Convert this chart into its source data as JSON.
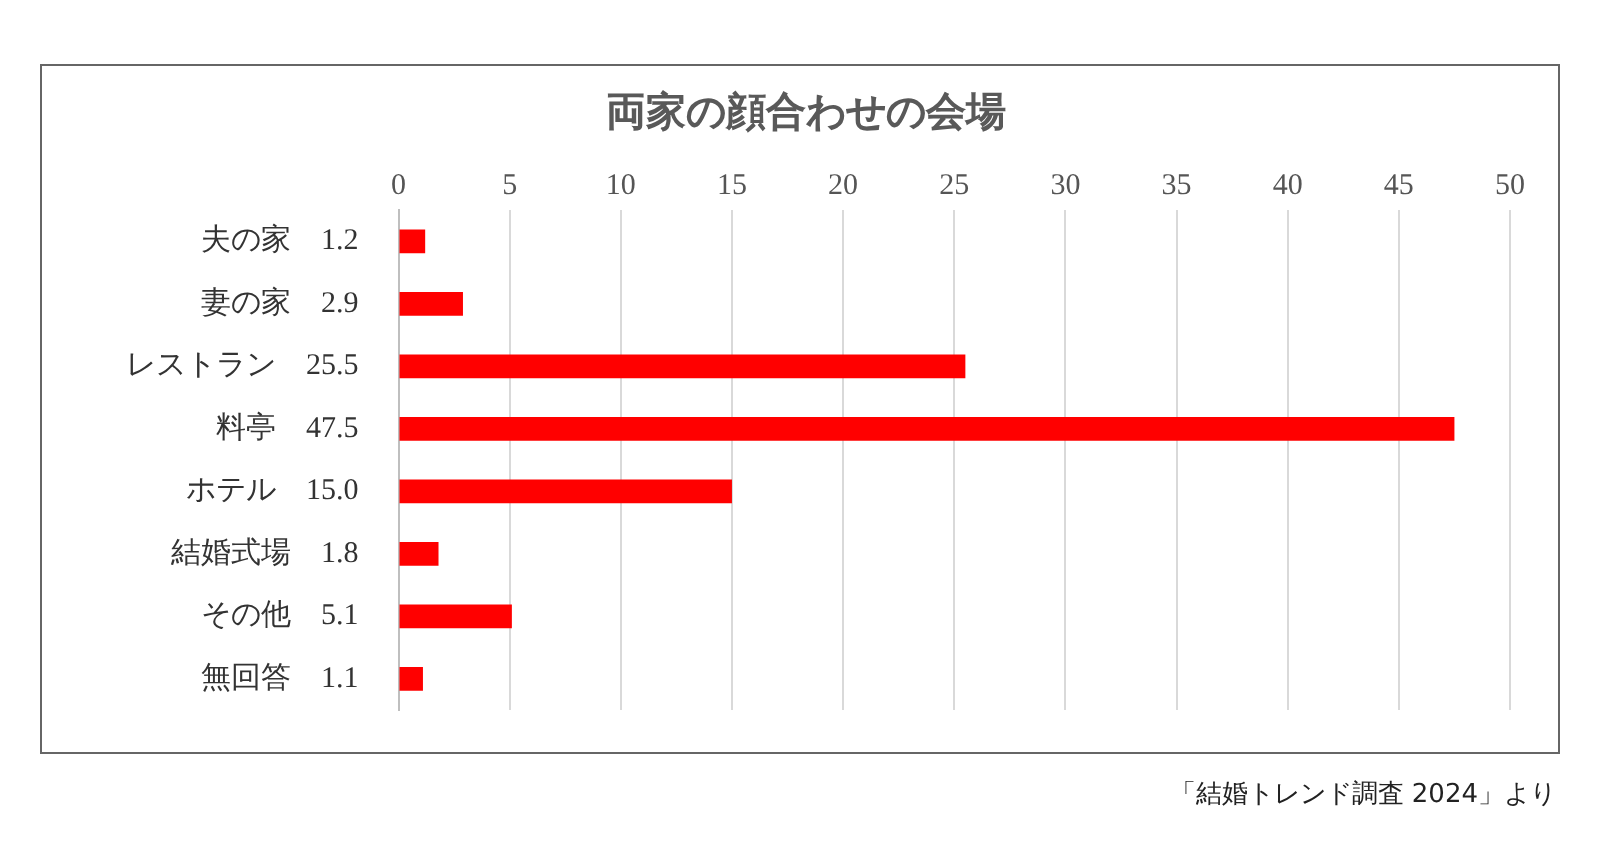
{
  "chart_data": {
    "type": "bar",
    "orientation": "horizontal",
    "title": "両家の顔合わせの会場",
    "categories": [
      "夫の家",
      "妻の家",
      "レストラン",
      "料亭",
      "ホテル",
      "結婚式場",
      "その他",
      "無回答"
    ],
    "values": [
      1.2,
      2.9,
      25.5,
      47.5,
      15.0,
      1.8,
      5.1,
      1.1
    ],
    "value_labels": [
      "1.2",
      "2.9",
      "25.5",
      "47.5",
      "15.0",
      "1.8",
      "5.1",
      "1.1"
    ],
    "color": "#ff0000",
    "xlim": [
      0,
      50
    ],
    "xticks": [
      0,
      5,
      10,
      15,
      20,
      25,
      30,
      35,
      40,
      45,
      50
    ],
    "grid": "x",
    "legend": false,
    "annotations": [
      "「結婚トレンド調査 2024」より"
    ]
  }
}
